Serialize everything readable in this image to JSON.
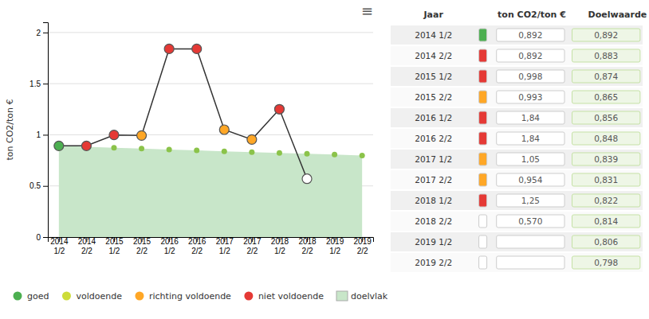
{
  "chart_data": {
    "type": "line",
    "ylabel": "ton CO2/ton €",
    "menu_icon": "≡",
    "categories": [
      "2014\n1/2",
      "2014\n2/2",
      "2015\n1/2",
      "2015\n2/2",
      "2016\n1/2",
      "2016\n2/2",
      "2017\n1/2",
      "2017\n2/2",
      "2018\n1/2",
      "2018\n2/2",
      "2019\n1/2",
      "2019\n2/2"
    ],
    "series": [
      {
        "type": "area",
        "color": "#c8e6c9",
        "marker": "circle",
        "values": [
          0.892,
          0.883,
          0.874,
          0.865,
          0.856,
          0.848,
          0.839,
          0.831,
          0.822,
          0.814,
          0.806,
          0.798
        ],
        "colors": [
          "#8bc34a",
          "#8bc34a",
          "#8bc34a",
          "#8bc34a",
          "#8bc34a",
          "#8bc34a",
          "#8bc34a",
          "#8bc34a",
          "#8bc34a",
          "#8bc34a",
          "#8bc34a",
          "#8bc34a"
        ]
      },
      {
        "type": "line",
        "color": "#333333",
        "marker": "circle",
        "values": [
          0.892,
          0.892,
          0.998,
          0.993,
          1.84,
          1.84,
          1.05,
          0.954,
          1.25,
          0.57,
          null,
          null
        ],
        "colors": [
          "#4caf50",
          "#e53935",
          "#e53935",
          "#ffa726",
          "#e53935",
          "#e53935",
          "#ffa726",
          "#ffa726",
          "#e53935",
          "#ffffff",
          "#ffffff",
          "#ffffff"
        ]
      }
    ],
    "ylim": [
      0,
      2.1
    ],
    "yticks": [
      0,
      0.5,
      1,
      1.5,
      2
    ],
    "grid": "y",
    "legend": "bottom-left",
    "legend_entries": [
      {
        "label": "goed",
        "color": "#4caf50",
        "marker": "circle"
      },
      {
        "label": "voldoende",
        "color": "#cddc39",
        "marker": "circle"
      },
      {
        "label": "richting voldoende",
        "color": "#ffa726",
        "marker": "circle"
      },
      {
        "label": "niet voldoende",
        "color": "#e53935",
        "marker": "circle"
      },
      {
        "label": "doelvlak",
        "color": "#c8e6c9",
        "marker": "square"
      }
    ],
    "table": {
      "header": [
        "Jaar",
        "ton CO2/ton €",
        "Doelwaarde"
      ],
      "rows": [
        {
          "jaar": "2014 1/2",
          "color": "#4caf50",
          "value": "0,892",
          "doelwaarde": "0,892"
        },
        {
          "jaar": "2014 2/2",
          "color": "#e53935",
          "value": "0,892",
          "doelwaarde": "0,883"
        },
        {
          "jaar": "2015 1/2",
          "color": "#e53935",
          "value": "0,998",
          "doelwaarde": "0,874"
        },
        {
          "jaar": "2015 2/2",
          "color": "#ffa726",
          "value": "0,993",
          "doelwaarde": "0,865"
        },
        {
          "jaar": "2016 1/2",
          "color": "#e53935",
          "value": "1,84",
          "doelwaarde": "0,856"
        },
        {
          "jaar": "2016 2/2",
          "color": "#e53935",
          "value": "1,84",
          "doelwaarde": "0,848"
        },
        {
          "jaar": "2017 1/2",
          "color": "#ffa726",
          "value": "1,05",
          "doelwaarde": "0,839"
        },
        {
          "jaar": "2017 2/2",
          "color": "#ffa726",
          "value": "0,954",
          "doelwaarde": "0,831"
        },
        {
          "jaar": "2018 1/2",
          "color": "#e53935",
          "value": "1,25",
          "doelwaarde": "0,822"
        },
        {
          "jaar": "2018 2/2",
          "color": "#ffffff",
          "value": "0,570",
          "doelwaarde": "0,814"
        },
        {
          "jaar": "2019 1/2",
          "color": "#ffffff",
          "value": null,
          "doelwaarde": "0,806"
        },
        {
          "jaar": "2019 2/2",
          "color": "#ffffff",
          "value": null,
          "doelwaarde": "0,798"
        }
      ]
    }
  }
}
